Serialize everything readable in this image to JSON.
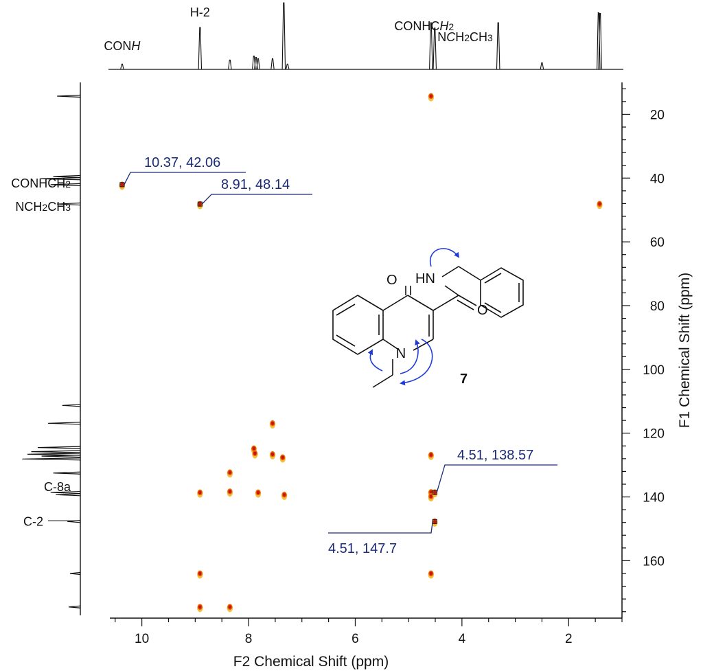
{
  "chart_data": {
    "type": "heatmap",
    "title": "",
    "xlabel": "F2 Chemical Shift (ppm)",
    "ylabel": "F1 Chemical Shift (ppm)",
    "xlim": [
      10.6,
      1.0
    ],
    "ylim": [
      10.0,
      178.0
    ],
    "x_ticks": [
      10,
      8,
      6,
      4,
      2
    ],
    "y_ticks": [
      20,
      40,
      60,
      80,
      100,
      120,
      140,
      160
    ],
    "grid": false,
    "cross_peaks": [
      {
        "x": 4.58,
        "y": 14.3
      },
      {
        "x": 1.42,
        "y": 48.1
      },
      {
        "x": 10.37,
        "y": 42.06
      },
      {
        "x": 8.91,
        "y": 48.14
      },
      {
        "x": 7.55,
        "y": 116.9
      },
      {
        "x": 7.9,
        "y": 124.8
      },
      {
        "x": 7.88,
        "y": 126.3
      },
      {
        "x": 7.55,
        "y": 126.6
      },
      {
        "x": 7.36,
        "y": 127.6
      },
      {
        "x": 8.35,
        "y": 132.3
      },
      {
        "x": 8.91,
        "y": 138.6
      },
      {
        "x": 8.35,
        "y": 138.3
      },
      {
        "x": 7.82,
        "y": 138.6
      },
      {
        "x": 7.33,
        "y": 139.3
      },
      {
        "x": 4.58,
        "y": 126.8
      },
      {
        "x": 4.58,
        "y": 138.5
      },
      {
        "x": 4.58,
        "y": 139.8
      },
      {
        "x": 4.51,
        "y": 138.57
      },
      {
        "x": 4.51,
        "y": 147.7
      },
      {
        "x": 8.91,
        "y": 164.0
      },
      {
        "x": 4.58,
        "y": 164.0
      },
      {
        "x": 8.91,
        "y": 174.5
      },
      {
        "x": 8.35,
        "y": 174.5
      }
    ],
    "annotations": [
      {
        "text": "10.37, 42.06",
        "x": 10.37,
        "y": 42.06
      },
      {
        "text": "8.91, 48.14",
        "x": 8.91,
        "y": 48.14
      },
      {
        "text": "4.51, 138.57",
        "x": 4.51,
        "y": 138.57
      },
      {
        "text": "4.51, 147.7",
        "x": 4.51,
        "y": 147.7
      }
    ],
    "f2_projection_peaks": [
      {
        "x": 10.37,
        "h": 0.08
      },
      {
        "x": 8.91,
        "h": 0.63
      },
      {
        "x": 8.35,
        "h": 0.14
      },
      {
        "x": 7.9,
        "h": 0.2
      },
      {
        "x": 7.86,
        "h": 0.18
      },
      {
        "x": 7.82,
        "h": 0.16
      },
      {
        "x": 7.55,
        "h": 0.16
      },
      {
        "x": 7.34,
        "h": 1.0
      },
      {
        "x": 7.27,
        "h": 0.08
      },
      {
        "x": 4.58,
        "h": 0.7
      },
      {
        "x": 4.51,
        "h": 0.62
      },
      {
        "x": 3.32,
        "h": 0.7
      },
      {
        "x": 2.5,
        "h": 0.1
      },
      {
        "x": 1.44,
        "h": 0.85
      },
      {
        "x": 1.41,
        "h": 0.84
      }
    ],
    "f1_projection_peaks": [
      {
        "y": 14.3,
        "h": 0.36
      },
      {
        "y": 39.5,
        "h": 0.42
      },
      {
        "y": 40.2,
        "h": 0.62
      },
      {
        "y": 42.06,
        "h": 0.46
      },
      {
        "y": 48.14,
        "h": 0.36
      },
      {
        "y": 111.3,
        "h": 0.28
      },
      {
        "y": 116.9,
        "h": 0.5
      },
      {
        "y": 124.5,
        "h": 0.66
      },
      {
        "y": 125.8,
        "h": 0.76
      },
      {
        "y": 126.6,
        "h": 0.82
      },
      {
        "y": 127.2,
        "h": 0.6
      },
      {
        "y": 128.1,
        "h": 0.9
      },
      {
        "y": 132.5,
        "h": 0.42
      },
      {
        "y": 138.6,
        "h": 0.46
      },
      {
        "y": 139.3,
        "h": 0.38
      },
      {
        "y": 147.7,
        "h": 0.2
      },
      {
        "y": 164.0,
        "h": 0.16
      },
      {
        "y": 174.5,
        "h": 0.18
      }
    ],
    "f2_labels": [
      {
        "text_parts": [
          "CON",
          "H"
        ],
        "italic": [
          false,
          true
        ],
        "x": 10.37
      },
      {
        "text_parts": [
          "H-2"
        ],
        "italic": [
          false
        ],
        "x": 8.91
      },
      {
        "text_parts": [
          "CONHC",
          "H",
          "2"
        ],
        "italic": [
          false,
          true,
          false
        ],
        "sub": [
          false,
          false,
          true
        ],
        "x": 4.58
      },
      {
        "text_parts": [
          "N",
          "C",
          "H",
          "2",
          "CH",
          "3"
        ],
        "italic": [
          false,
          true,
          false,
          false,
          false,
          false
        ],
        "sub": [
          false,
          false,
          false,
          true,
          false,
          true
        ],
        "x": 4.51
      }
    ],
    "f1_labels": [
      {
        "text_parts": [
          "CONHC",
          "H",
          "2"
        ],
        "sub": [
          false,
          false,
          true
        ],
        "y": 42.06
      },
      {
        "text_parts": [
          "N",
          "CH",
          "2",
          "CH",
          "3"
        ],
        "sub": [
          false,
          false,
          true,
          false,
          true
        ],
        "y": 48.14
      },
      {
        "text_parts": [
          "C-8a"
        ],
        "sub": [
          false
        ],
        "y": 138.6
      },
      {
        "text_parts": [
          "C-2"
        ],
        "sub": [
          false
        ],
        "y": 147.7
      }
    ]
  },
  "molecule": {
    "atoms": {
      "o_ketone": "O",
      "amide_nh": "HN",
      "o_amide": "O",
      "n_ring": "N"
    },
    "compound_label": "7"
  },
  "colors": {
    "annotation": "#1c2a78",
    "arrow": "#1f3bd8",
    "peak_strong": "#c8140c",
    "peak_medium": "#e8620a",
    "peak_weak": "#f3b41c",
    "axis": "#111111"
  }
}
